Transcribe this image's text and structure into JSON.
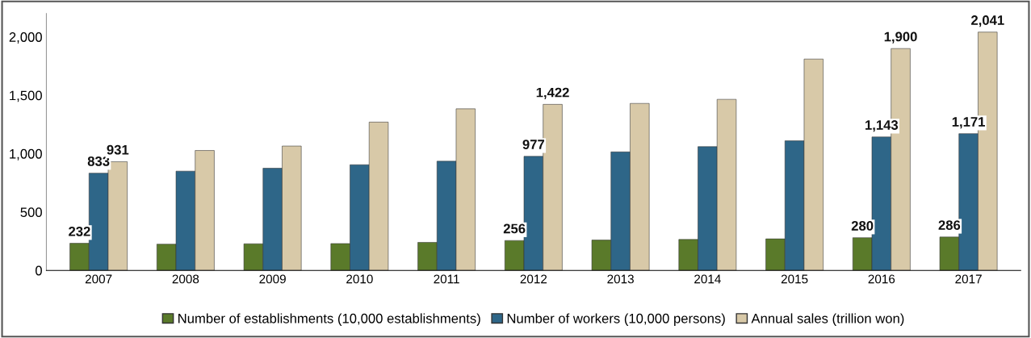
{
  "chart_data": {
    "type": "bar",
    "categories": [
      "2007",
      "2008",
      "2009",
      "2010",
      "2011",
      "2012",
      "2013",
      "2014",
      "2015",
      "2016",
      "2017"
    ],
    "series": [
      {
        "name": "Number of establishments (10,000 establishments)",
        "color": "#5a7a2a",
        "values": [
          232,
          225,
          228,
          230,
          240,
          256,
          260,
          265,
          270,
          280,
          286
        ],
        "value_labels": [
          "232",
          null,
          null,
          null,
          null,
          "256",
          null,
          null,
          null,
          "280",
          "286"
        ]
      },
      {
        "name": "Number of workers (10,000 persons)",
        "color": "#2e6688",
        "values": [
          833,
          850,
          875,
          905,
          935,
          977,
          1015,
          1060,
          1110,
          1143,
          1171
        ],
        "value_labels": [
          "833",
          null,
          null,
          null,
          null,
          "977",
          null,
          null,
          null,
          "1,143",
          "1,171"
        ]
      },
      {
        "name": "Annual sales (trillion won)",
        "color": "#d8c9a8",
        "values": [
          931,
          1027,
          1065,
          1270,
          1384,
          1422,
          1430,
          1465,
          1810,
          1900,
          2041
        ],
        "value_labels": [
          "931",
          null,
          null,
          null,
          null,
          "1,422",
          null,
          null,
          null,
          "1,900",
          "2,041"
        ]
      }
    ],
    "ylim": [
      0,
      2200
    ],
    "yticks": [
      0,
      500,
      {
        "value": 1000,
        "label": "1,000"
      },
      {
        "value": 1500,
        "label": "1,500"
      },
      {
        "value": 2000,
        "label": "2,000"
      }
    ],
    "grid": false,
    "legend": "bottom"
  }
}
